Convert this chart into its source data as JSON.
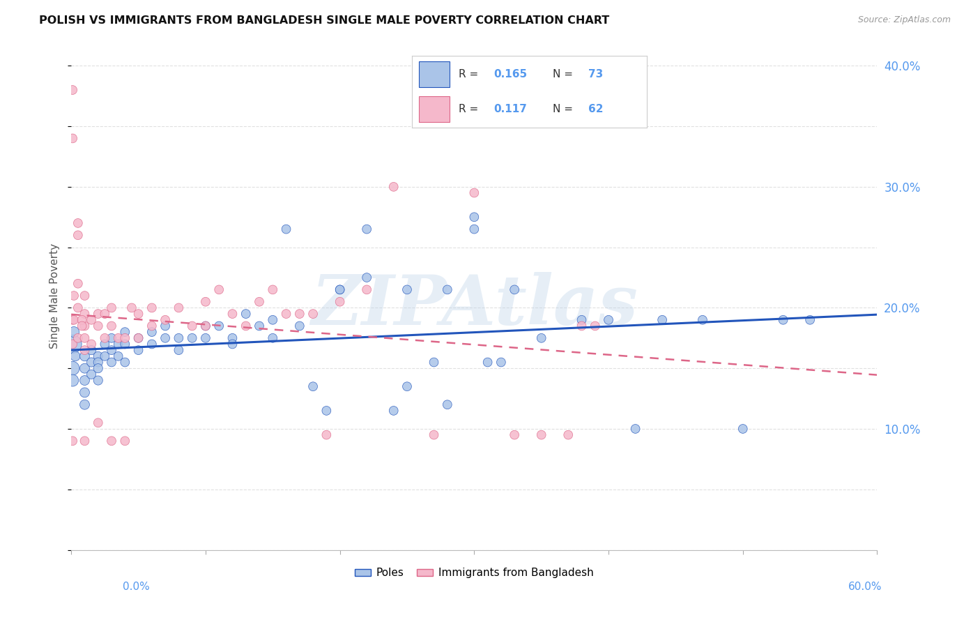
{
  "title": "POLISH VS IMMIGRANTS FROM BANGLADESH SINGLE MALE POVERTY CORRELATION CHART",
  "source": "Source: ZipAtlas.com",
  "ylabel": "Single Male Poverty",
  "poles_color": "#aac4e8",
  "bangladesh_color": "#f5b8cb",
  "trend_poles_color": "#2255bb",
  "trend_bangladesh_color": "#dd6688",
  "background_color": "#ffffff",
  "grid_color": "#dddddd",
  "axis_label_color": "#5599ee",
  "xlim": [
    0.0,
    0.6
  ],
  "ylim": [
    0.0,
    0.42
  ],
  "yticks": [
    0.1,
    0.2,
    0.3,
    0.4
  ],
  "ytick_labels": [
    "10.0%",
    "20.0%",
    "30.0%",
    "40.0%"
  ],
  "poles_x": [
    0.001,
    0.001,
    0.001,
    0.002,
    0.003,
    0.01,
    0.01,
    0.01,
    0.01,
    0.01,
    0.015,
    0.015,
    0.015,
    0.02,
    0.02,
    0.02,
    0.02,
    0.025,
    0.025,
    0.03,
    0.03,
    0.03,
    0.035,
    0.035,
    0.04,
    0.04,
    0.04,
    0.05,
    0.05,
    0.06,
    0.06,
    0.07,
    0.07,
    0.08,
    0.08,
    0.09,
    0.1,
    0.1,
    0.11,
    0.12,
    0.12,
    0.13,
    0.14,
    0.15,
    0.15,
    0.16,
    0.17,
    0.18,
    0.19,
    0.2,
    0.22,
    0.24,
    0.25,
    0.27,
    0.28,
    0.3,
    0.32,
    0.35,
    0.38,
    0.4,
    0.42,
    0.44,
    0.47,
    0.5,
    0.53,
    0.55,
    0.3,
    0.33,
    0.2,
    0.22,
    0.25,
    0.28,
    0.31
  ],
  "poles_y": [
    0.17,
    0.15,
    0.14,
    0.18,
    0.16,
    0.16,
    0.15,
    0.14,
    0.13,
    0.12,
    0.165,
    0.155,
    0.145,
    0.16,
    0.155,
    0.15,
    0.14,
    0.17,
    0.16,
    0.175,
    0.165,
    0.155,
    0.17,
    0.16,
    0.18,
    0.17,
    0.155,
    0.175,
    0.165,
    0.18,
    0.17,
    0.185,
    0.175,
    0.175,
    0.165,
    0.175,
    0.185,
    0.175,
    0.185,
    0.175,
    0.17,
    0.195,
    0.185,
    0.19,
    0.175,
    0.265,
    0.185,
    0.135,
    0.115,
    0.215,
    0.225,
    0.115,
    0.135,
    0.155,
    0.12,
    0.265,
    0.155,
    0.175,
    0.19,
    0.19,
    0.1,
    0.19,
    0.19,
    0.1,
    0.19,
    0.19,
    0.275,
    0.215,
    0.215,
    0.265,
    0.215,
    0.215,
    0.155
  ],
  "poles_sizes": [
    350,
    200,
    150,
    120,
    100,
    100,
    100,
    100,
    100,
    100,
    90,
    90,
    90,
    90,
    90,
    90,
    90,
    85,
    85,
    85,
    85,
    85,
    85,
    85,
    85,
    85,
    85,
    85,
    85,
    85,
    85,
    85,
    85,
    85,
    85,
    85,
    85,
    85,
    85,
    85,
    85,
    85,
    85,
    85,
    85,
    85,
    85,
    85,
    85,
    85,
    85,
    85,
    85,
    85,
    85,
    85,
    85,
    85,
    85,
    85,
    85,
    85,
    85,
    85,
    85,
    85,
    85,
    85,
    85,
    85,
    85,
    85,
    85
  ],
  "bangladesh_x": [
    0.001,
    0.001,
    0.001,
    0.001,
    0.001,
    0.002,
    0.002,
    0.005,
    0.005,
    0.01,
    0.01,
    0.01,
    0.01,
    0.015,
    0.015,
    0.02,
    0.02,
    0.02,
    0.025,
    0.025,
    0.03,
    0.03,
    0.03,
    0.035,
    0.04,
    0.04,
    0.045,
    0.05,
    0.05,
    0.06,
    0.06,
    0.07,
    0.08,
    0.09,
    0.1,
    0.1,
    0.11,
    0.12,
    0.13,
    0.14,
    0.15,
    0.16,
    0.17,
    0.18,
    0.19,
    0.2,
    0.22,
    0.24,
    0.27,
    0.3,
    0.33,
    0.35,
    0.37,
    0.38,
    0.39,
    0.005,
    0.005,
    0.005,
    0.008,
    0.008,
    0.01,
    0.01
  ],
  "bangladesh_y": [
    0.38,
    0.34,
    0.19,
    0.17,
    0.09,
    0.21,
    0.19,
    0.26,
    0.2,
    0.195,
    0.185,
    0.165,
    0.09,
    0.19,
    0.17,
    0.195,
    0.185,
    0.105,
    0.195,
    0.175,
    0.2,
    0.185,
    0.09,
    0.175,
    0.175,
    0.09,
    0.2,
    0.195,
    0.175,
    0.2,
    0.185,
    0.19,
    0.2,
    0.185,
    0.205,
    0.185,
    0.215,
    0.195,
    0.185,
    0.205,
    0.215,
    0.195,
    0.195,
    0.195,
    0.095,
    0.205,
    0.215,
    0.3,
    0.095,
    0.295,
    0.095,
    0.095,
    0.095,
    0.185,
    0.185,
    0.27,
    0.22,
    0.175,
    0.19,
    0.185,
    0.21,
    0.175
  ],
  "bangladesh_sizes": [
    85,
    85,
    85,
    85,
    85,
    85,
    85,
    85,
    85,
    85,
    85,
    85,
    85,
    85,
    85,
    85,
    85,
    85,
    85,
    85,
    85,
    85,
    85,
    85,
    85,
    85,
    85,
    85,
    85,
    85,
    85,
    85,
    85,
    85,
    85,
    85,
    85,
    85,
    85,
    85,
    85,
    85,
    85,
    85,
    85,
    85,
    85,
    85,
    85,
    85,
    85,
    85,
    85,
    85,
    85,
    85,
    85,
    85,
    85,
    85,
    85,
    85
  ],
  "watermark_text": "ZIPAtlas",
  "watermark_color": "#b8d0e8"
}
